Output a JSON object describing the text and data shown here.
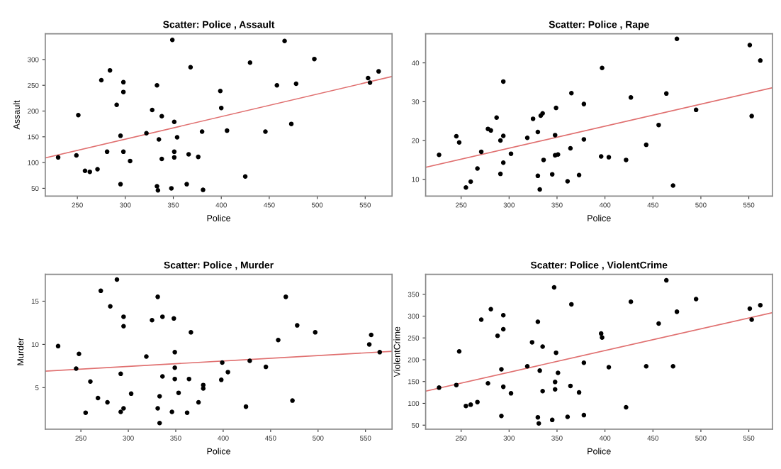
{
  "chart_data": [
    {
      "type": "scatter",
      "title": "Scatter: Police , Assault",
      "xlabel": "Police",
      "ylabel": "Assault",
      "xlim": [
        216.6,
        578
      ],
      "ylim": [
        35,
        350
      ],
      "xticks": [
        250,
        300,
        350,
        400,
        450,
        500,
        550
      ],
      "yticks": [
        50,
        100,
        150,
        200,
        250,
        300
      ],
      "grid": false,
      "series": [
        {
          "marker": "circle",
          "color": "#000000",
          "x": [
            230,
            249,
            251,
            258,
            263,
            271,
            281,
            275,
            284,
            291,
            295,
            298,
            298,
            298,
            295,
            305,
            322,
            328,
            333,
            335,
            338,
            338,
            333,
            334,
            348,
            349,
            351,
            351,
            351,
            354,
            366,
            368,
            376,
            380,
            381,
            364,
            399,
            400,
            406,
            425,
            430,
            446,
            458,
            466,
            473,
            478,
            497,
            553,
            555,
            564
          ],
          "values": [
            110,
            114,
            192,
            84,
            82,
            87,
            121,
            260,
            279,
            212,
            152,
            256,
            237,
            121,
            58,
            103,
            157,
            202,
            250,
            145,
            190,
            107,
            54,
            46,
            50,
            338,
            179,
            121,
            110,
            149,
            116,
            285,
            111,
            160,
            47,
            58,
            239,
            206,
            162,
            73,
            294,
            160,
            250,
            336,
            175,
            253,
            301,
            264,
            255,
            277
          ]
        },
        {
          "type": "line",
          "color": "#e07070",
          "x": [
            216.6,
            578
          ],
          "values": [
            109,
            267
          ]
        }
      ]
    },
    {
      "type": "scatter",
      "title": "Scatter: Police , Rape",
      "xlabel": "Police",
      "xlim": [
        213,
        574.6
      ],
      "ylim": [
        5.7,
        47.5
      ],
      "xticks": [
        250,
        300,
        350,
        400,
        450,
        500,
        550
      ],
      "yticks": [
        10,
        20,
        30,
        40
      ],
      "grid": false,
      "series": [
        {
          "marker": "circle",
          "color": "#000000",
          "x": [
            227,
            245,
            248,
            255,
            260,
            267,
            271,
            278,
            281,
            287,
            291,
            291,
            294,
            294,
            294,
            302,
            319,
            325,
            330,
            330,
            332,
            333,
            335,
            336,
            345,
            348,
            349,
            348,
            351,
            361,
            364,
            365,
            373,
            378,
            378,
            396,
            397,
            404,
            422,
            427,
            443,
            456,
            464,
            471,
            475,
            495,
            551,
            553,
            562
          ],
          "values": [
            16.3,
            21.1,
            19.5,
            7.9,
            9.4,
            12.8,
            17.1,
            23.0,
            22.6,
            25.9,
            11.4,
            20.0,
            21.2,
            35.2,
            14.3,
            16.6,
            20.7,
            25.6,
            22.2,
            10.9,
            7.4,
            26.4,
            27.0,
            15.0,
            11.3,
            21.4,
            28.4,
            16.2,
            16.4,
            9.5,
            18.0,
            32.2,
            11.1,
            29.4,
            20.3,
            15.9,
            38.7,
            15.7,
            15.0,
            31.1,
            18.9,
            24.0,
            32.1,
            8.4,
            46.2,
            27.9,
            44.6,
            26.3,
            40.6
          ]
        },
        {
          "type": "line",
          "color": "#e07070",
          "x": [
            213,
            574.6
          ],
          "values": [
            13.1,
            33.6
          ]
        }
      ]
    },
    {
      "type": "scatter",
      "title": "Scatter: Police , Murder",
      "xlabel": "Police",
      "ylabel": "Murder",
      "xlim": [
        212.5,
        578
      ],
      "ylim": [
        0.2,
        18.1
      ],
      "xticks": [
        250,
        300,
        350,
        400,
        450,
        500,
        550
      ],
      "yticks": [
        5,
        10,
        15
      ],
      "grid": false,
      "series": [
        {
          "marker": "circle",
          "color": "#000000",
          "x": [
            226,
            248,
            245,
            255,
            260,
            268,
            271,
            278,
            281,
            288,
            292,
            292,
            295,
            295,
            295,
            303,
            319,
            325,
            331,
            331,
            333,
            333,
            336,
            336,
            346,
            348,
            349,
            349,
            349,
            353,
            362,
            364,
            366,
            374,
            379,
            379,
            398,
            399,
            405,
            424,
            428,
            445,
            458,
            466,
            473,
            478,
            497,
            554,
            556,
            565
          ],
          "values": [
            9.8,
            8.9,
            7.2,
            2.1,
            5.7,
            3.8,
            16.2,
            3.3,
            14.4,
            17.5,
            6.6,
            2.2,
            2.6,
            13.2,
            12.1,
            4.3,
            8.6,
            12.8,
            15.5,
            2.6,
            4.0,
            0.9,
            13.2,
            6.3,
            2.2,
            13.0,
            7.3,
            6.0,
            9.1,
            4.4,
            2.1,
            6.0,
            11.4,
            3.3,
            4.9,
            5.3,
            5.9,
            7.9,
            6.8,
            2.8,
            8.1,
            7.4,
            10.5,
            15.5,
            3.5,
            12.2,
            11.4,
            10.0,
            11.1,
            9.1
          ]
        },
        {
          "type": "line",
          "color": "#e07070",
          "x": [
            212.5,
            578
          ],
          "values": [
            6.9,
            9.2
          ]
        }
      ]
    },
    {
      "type": "scatter",
      "title": "Scatter: Police , ViolentCrime",
      "xlabel": "Police",
      "ylabel": "ViolentCrime",
      "xlim": [
        213,
        574.6
      ],
      "ylim": [
        40.9,
        395.7
      ],
      "xticks": [
        250,
        300,
        350,
        400,
        450,
        500,
        550
      ],
      "yticks": [
        50,
        100,
        150,
        200,
        250,
        300,
        350
      ],
      "grid": false,
      "series": [
        {
          "marker": "circle",
          "color": "#000000",
          "x": [
            227,
            245,
            248,
            255,
            260,
            267,
            271,
            278,
            281,
            288,
            292,
            292,
            294,
            294,
            294,
            302,
            319,
            324,
            330,
            330,
            331,
            332,
            335,
            335,
            345,
            347,
            348,
            348,
            349,
            351,
            361,
            364,
            365,
            373,
            378,
            378,
            396,
            397,
            404,
            422,
            427,
            443,
            456,
            464,
            471,
            475,
            495,
            551,
            553,
            562
          ],
          "values": [
            136,
            142,
            219,
            94,
            97,
            103,
            292,
            146,
            316,
            255,
            178,
            71,
            302,
            270,
            138,
            123,
            185,
            240,
            287,
            68,
            54,
            175,
            230,
            128,
            62,
            366,
            149,
            132,
            216,
            170,
            69,
            140,
            327,
            125,
            193,
            73,
            260,
            251,
            183,
            91,
            333,
            185,
            283,
            382,
            185,
            310,
            339,
            317,
            292,
            325
          ]
        },
        {
          "type": "line",
          "color": "#e07070",
          "x": [
            213,
            574.6
          ],
          "values": [
            128,
            308
          ]
        }
      ]
    }
  ]
}
